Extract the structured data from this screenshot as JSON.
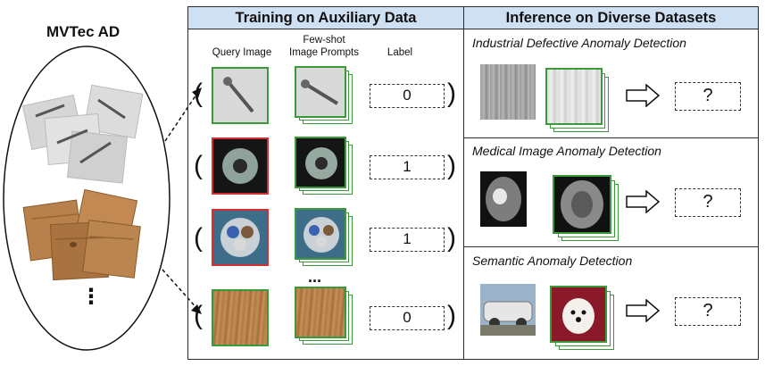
{
  "left": {
    "title": "MVTec AD",
    "ellipsis": "⋮"
  },
  "training": {
    "title": "Training on Auxiliary Data",
    "columns": {
      "query": "Query Image",
      "prompts_line1": "Few-shot",
      "prompts_line2": "Image Prompts",
      "label": "Label"
    },
    "rows": [
      {
        "label": "0"
      },
      {
        "label": "1"
      },
      {
        "label": "1"
      },
      {
        "label": "0"
      }
    ],
    "gap_marker": "..."
  },
  "inference": {
    "title": "Inference on Diverse Datasets",
    "sections": [
      {
        "title": "Industrial Defective Anomaly Detection",
        "answer": "?"
      },
      {
        "title": "Medical Image Anomaly Detection",
        "answer": "?"
      },
      {
        "title": "Semantic Anomaly Detection",
        "answer": "?"
      }
    ]
  },
  "colors": {
    "header_bg": "#cfe0f3",
    "normal_border": "#3a9a3a",
    "anomaly_border": "#d23030"
  }
}
